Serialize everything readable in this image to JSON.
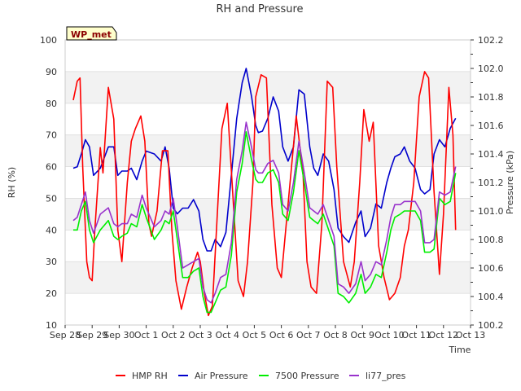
{
  "chart_data": {
    "type": "line",
    "title": "RH and Pressure",
    "xlabel": "Time",
    "ylabel_left": "RH (%)",
    "ylabel_right": "Pressure (kPa)",
    "site_label": "WP_met",
    "x_ticks": [
      "Sep 28",
      "Sep 29",
      "Sep 30",
      "Oct 1",
      "Oct 2",
      "Oct 3",
      "Oct 4",
      "Oct 5",
      "Oct 6",
      "Oct 7",
      "Oct 8",
      "Oct 9",
      "Oct 10",
      "Oct 11",
      "Oct 12",
      "Oct 13"
    ],
    "x_range_days": [
      0,
      15
    ],
    "y_left_range": [
      10,
      100
    ],
    "y_left_ticks": [
      "10",
      "20",
      "30",
      "40",
      "50",
      "60",
      "70",
      "80",
      "90",
      "100"
    ],
    "y_right_range": [
      100.2,
      102.2
    ],
    "y_right_ticks": [
      "100.2",
      "100.4",
      "100.6",
      "100.8",
      "101.0",
      "101.2",
      "101.4",
      "101.6",
      "101.8",
      "102.0",
      "102.2"
    ],
    "grid": "horizontal alternating bands",
    "legend_position": "bottom",
    "series": [
      {
        "name": "HMP RH",
        "color": "#ff0000",
        "axis": "left",
        "x": [
          0.3,
          0.45,
          0.55,
          0.65,
          0.8,
          0.9,
          1.0,
          1.1,
          1.3,
          1.4,
          1.6,
          1.8,
          1.95,
          2.1,
          2.3,
          2.45,
          2.6,
          2.8,
          2.95,
          3.1,
          3.2,
          3.4,
          3.6,
          3.8,
          3.95,
          4.1,
          4.3,
          4.5,
          4.7,
          4.9,
          5.0,
          5.15,
          5.3,
          5.45,
          5.6,
          5.8,
          6.0,
          6.2,
          6.4,
          6.6,
          6.75,
          6.95,
          7.05,
          7.25,
          7.45,
          7.65,
          7.85,
          8.0,
          8.3,
          8.55,
          8.8,
          8.95,
          9.1,
          9.3,
          9.5,
          9.7,
          9.9,
          10.05,
          10.3,
          10.55,
          10.7,
          10.9,
          11.05,
          11.25,
          11.4,
          11.6,
          11.8,
          12.0,
          12.2,
          12.4,
          12.55,
          12.7,
          12.9,
          13.1,
          13.3,
          13.45,
          13.65,
          13.85,
          14.0,
          14.2,
          14.35,
          14.45
        ],
        "values": [
          81,
          87,
          88,
          60,
          30,
          25,
          24,
          40,
          66,
          58,
          85,
          75,
          40,
          30,
          55,
          68,
          72,
          76,
          68,
          42,
          38,
          46,
          65,
          65,
          40,
          24,
          15,
          22,
          28,
          33,
          30,
          20,
          13,
          16,
          40,
          72,
          80,
          52,
          24,
          19,
          30,
          55,
          82,
          89,
          88,
          48,
          28,
          25,
          53,
          76,
          58,
          30,
          22,
          20,
          42,
          87,
          85,
          60,
          30,
          22,
          30,
          55,
          78,
          68,
          74,
          35,
          25,
          18,
          20,
          25,
          35,
          40,
          55,
          82,
          90,
          88,
          52,
          26,
          45,
          85,
          70,
          40
        ],
        "note": ""
      },
      {
        "name": "Air Pressure",
        "color": "#0000cc",
        "axis": "right",
        "x": [
          0.3,
          0.45,
          0.6,
          0.75,
          0.9,
          1.05,
          1.3,
          1.6,
          1.8,
          1.95,
          2.1,
          2.3,
          2.45,
          2.65,
          2.85,
          3.0,
          3.3,
          3.55,
          3.7,
          3.85,
          4.0,
          4.15,
          4.35,
          4.55,
          4.75,
          4.95,
          5.1,
          5.25,
          5.4,
          5.55,
          5.75,
          5.95,
          6.15,
          6.35,
          6.55,
          6.7,
          6.9,
          7.05,
          7.15,
          7.3,
          7.5,
          7.7,
          7.9,
          8.05,
          8.25,
          8.45,
          8.65,
          8.85,
          9.05,
          9.2,
          9.35,
          9.55,
          9.75,
          9.95,
          10.1,
          10.3,
          10.5,
          10.75,
          10.95,
          11.1,
          11.3,
          11.5,
          11.7,
          11.9,
          12.05,
          12.2,
          12.4,
          12.55,
          12.75,
          12.95,
          13.15,
          13.3,
          13.5,
          13.65,
          13.85,
          14.05,
          14.25,
          14.45
        ],
        "values": [
          101.3,
          101.31,
          101.4,
          101.5,
          101.45,
          101.25,
          101.3,
          101.45,
          101.45,
          101.25,
          101.28,
          101.28,
          101.3,
          101.22,
          101.35,
          101.42,
          101.4,
          101.35,
          101.45,
          101.3,
          101.02,
          100.98,
          101.02,
          101.02,
          101.08,
          101.0,
          100.8,
          100.72,
          100.72,
          100.8,
          100.75,
          100.85,
          101.25,
          101.65,
          101.9,
          102.0,
          101.8,
          101.6,
          101.55,
          101.56,
          101.65,
          101.8,
          101.7,
          101.45,
          101.35,
          101.45,
          101.85,
          101.82,
          101.45,
          101.3,
          101.25,
          101.4,
          101.35,
          101.15,
          100.88,
          100.82,
          100.78,
          100.92,
          101.0,
          100.82,
          100.88,
          101.05,
          101.02,
          101.2,
          101.3,
          101.38,
          101.4,
          101.45,
          101.35,
          101.3,
          101.15,
          101.12,
          101.15,
          101.4,
          101.5,
          101.45,
          101.58,
          101.65
        ]
      },
      {
        "name": "7500 Pressure",
        "color": "#00ee00",
        "axis": "left",
        "x": [
          0.3,
          0.45,
          0.6,
          0.75,
          0.9,
          1.05,
          1.3,
          1.6,
          1.8,
          1.95,
          2.1,
          2.3,
          2.45,
          2.65,
          2.85,
          3.0,
          3.3,
          3.55,
          3.7,
          3.85,
          4.0,
          4.15,
          4.35,
          4.55,
          4.75,
          4.95,
          5.1,
          5.25,
          5.4,
          5.55,
          5.75,
          5.95,
          6.15,
          6.35,
          6.55,
          6.7,
          6.9,
          7.05,
          7.15,
          7.3,
          7.5,
          7.7,
          7.9,
          8.05,
          8.25,
          8.45,
          8.65,
          8.85,
          9.05,
          9.2,
          9.35,
          9.55,
          9.75,
          9.95,
          10.1,
          10.3,
          10.5,
          10.75,
          10.95,
          11.1,
          11.3,
          11.5,
          11.7,
          11.9,
          12.05,
          12.2,
          12.4,
          12.55,
          12.75,
          12.95,
          13.15,
          13.3,
          13.5,
          13.65,
          13.85,
          14.05,
          14.25,
          14.45
        ],
        "values": [
          40,
          40,
          46,
          49,
          40,
          36,
          40,
          43,
          38,
          37,
          38,
          39,
          42,
          41,
          48,
          44,
          37,
          40,
          43,
          42,
          46,
          37,
          25,
          25,
          27,
          28,
          19,
          14,
          14,
          17,
          21,
          22,
          32,
          52,
          61,
          71,
          62,
          56,
          55,
          55,
          58,
          59,
          55,
          45,
          43,
          52,
          65,
          55,
          44,
          43,
          42,
          45,
          40,
          35,
          20,
          19,
          17,
          20,
          26,
          20,
          22,
          26,
          25,
          33,
          40,
          44,
          45,
          46,
          46,
          46,
          43,
          33,
          33,
          34,
          50,
          48,
          49,
          58
        ]
      },
      {
        "name": "li77_pres",
        "color": "#9932cc",
        "axis": "left",
        "x": [
          0.3,
          0.45,
          0.6,
          0.75,
          0.9,
          1.05,
          1.3,
          1.6,
          1.8,
          1.95,
          2.1,
          2.3,
          2.45,
          2.65,
          2.85,
          3.0,
          3.3,
          3.55,
          3.7,
          3.85,
          4.0,
          4.15,
          4.35,
          4.55,
          4.75,
          4.95,
          5.1,
          5.25,
          5.4,
          5.55,
          5.75,
          5.95,
          6.15,
          6.35,
          6.55,
          6.7,
          6.9,
          7.05,
          7.15,
          7.3,
          7.5,
          7.7,
          7.9,
          8.05,
          8.25,
          8.45,
          8.65,
          8.85,
          9.05,
          9.2,
          9.35,
          9.55,
          9.75,
          9.95,
          10.1,
          10.3,
          10.5,
          10.75,
          10.95,
          11.1,
          11.3,
          11.5,
          11.7,
          11.9,
          12.05,
          12.2,
          12.4,
          12.55,
          12.75,
          12.95,
          13.15,
          13.3,
          13.5,
          13.65,
          13.85,
          14.05,
          14.25,
          14.45
        ],
        "values": [
          43,
          44,
          48,
          52,
          43,
          39,
          45,
          47,
          42,
          41,
          42,
          42,
          45,
          44,
          51,
          47,
          41,
          43,
          46,
          45,
          50,
          41,
          28,
          29,
          30,
          31,
          22,
          18,
          17,
          20,
          25,
          26,
          36,
          56,
          65,
          74,
          66,
          59,
          58,
          58,
          61,
          62,
          58,
          48,
          46,
          55,
          68,
          58,
          47,
          46,
          45,
          48,
          43,
          38,
          23,
          22,
          20,
          23,
          30,
          24,
          26,
          30,
          29,
          37,
          44,
          48,
          48,
          49,
          49,
          49,
          46,
          36,
          36,
          37,
          52,
          51,
          52,
          60
        ]
      }
    ]
  }
}
